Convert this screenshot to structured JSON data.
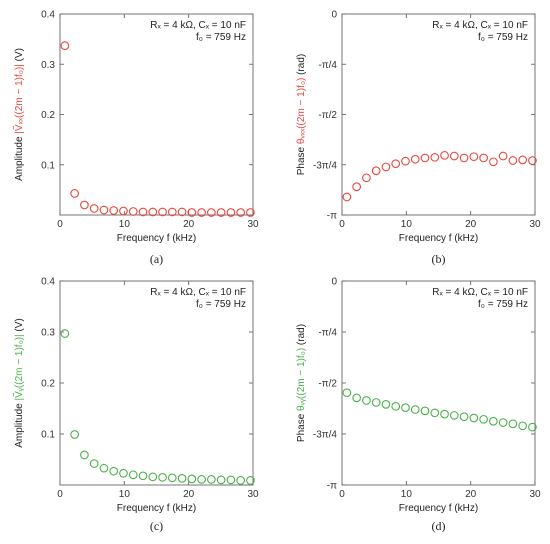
{
  "colors": {
    "red": "#e8473f",
    "green": "#4bb04b"
  },
  "chart_data": [
    {
      "id": "a",
      "type": "scatter",
      "caption": "(a)",
      "ylabel_parts": {
        "left": "Amplitude ",
        "colored": "|Ṽₓₓ((2m − 1)f₀)|",
        "right": " (V)"
      },
      "xlabel": "Frequency f (kHz)",
      "annotation": [
        "Rₓ = 4 kΩ, Cₓ = 10 nF",
        "f₀ = 759 Hz"
      ],
      "xlim": [
        0,
        30
      ],
      "ylim": [
        0,
        0.4
      ],
      "xticks": [
        0,
        10,
        20,
        30
      ],
      "xtick_labels": [
        "0",
        "10",
        "20",
        "30"
      ],
      "yticks": [
        0.1,
        0.2,
        0.3,
        0.4
      ],
      "ytick_labels": [
        "0.1",
        "0.2",
        "0.3",
        "0.4"
      ],
      "color": "red",
      "x": [
        0.759,
        2.277,
        3.795,
        5.313,
        6.831,
        8.349,
        9.867,
        11.385,
        12.903,
        14.421,
        15.939,
        17.457,
        18.975,
        20.493,
        22.011,
        23.529,
        25.047,
        26.565,
        28.083,
        29.601
      ],
      "y": [
        0.337,
        0.043,
        0.02,
        0.013,
        0.01,
        0.009,
        0.008,
        0.007,
        0.006,
        0.006,
        0.006,
        0.006,
        0.006,
        0.005,
        0.005,
        0.005,
        0.005,
        0.005,
        0.005,
        0.005
      ]
    },
    {
      "id": "b",
      "type": "scatter",
      "caption": "(b)",
      "ylabel_parts": {
        "left": "Phase ",
        "colored": "θᵥₓₓ((2m − 1)f₀)",
        "right": " (rad)"
      },
      "xlabel": "Frequency f (kHz)",
      "annotation": [
        "Rₓ = 4 kΩ, Cₓ = 10 nF",
        "f₀ = 759 Hz"
      ],
      "xlim": [
        0,
        30
      ],
      "ylim": [
        -3.1416,
        0
      ],
      "xticks": [
        0,
        10,
        20,
        30
      ],
      "xtick_labels": [
        "0",
        "10",
        "20",
        "30"
      ],
      "yticks": [
        -3.1416,
        -2.3562,
        -1.5708,
        -0.7854,
        0
      ],
      "ytick_labels": [
        "-π",
        "-3π/4",
        "-π/2",
        "-π/4",
        "0"
      ],
      "color": "red",
      "x": [
        0.759,
        2.277,
        3.795,
        5.313,
        6.831,
        8.349,
        9.867,
        11.385,
        12.903,
        14.421,
        15.939,
        17.457,
        18.975,
        20.493,
        22.011,
        23.529,
        25.047,
        26.565,
        28.083,
        29.601
      ],
      "y": [
        -2.86,
        -2.7,
        -2.56,
        -2.45,
        -2.39,
        -2.34,
        -2.3,
        -2.27,
        -2.25,
        -2.24,
        -2.21,
        -2.22,
        -2.25,
        -2.23,
        -2.25,
        -2.31,
        -2.22,
        -2.29,
        -2.28,
        -2.29
      ]
    },
    {
      "id": "c",
      "type": "scatter",
      "caption": "(c)",
      "ylabel_parts": {
        "left": "Amplitude ",
        "colored": "|Ṽᵧ((2m − 1)f₀)|",
        "right": " (V)"
      },
      "xlabel": "Frequency f (kHz)",
      "annotation": [
        "Rₓ = 4 kΩ, Cₓ = 10 nF",
        "f₀ = 759 Hz"
      ],
      "xlim": [
        0,
        30
      ],
      "ylim": [
        0,
        0.4
      ],
      "xticks": [
        0,
        10,
        20,
        30
      ],
      "xtick_labels": [
        "0",
        "10",
        "20",
        "30"
      ],
      "yticks": [
        0.1,
        0.2,
        0.3,
        0.4
      ],
      "ytick_labels": [
        "0.1",
        "0.2",
        "0.3",
        "0.4"
      ],
      "color": "green",
      "x": [
        0.759,
        2.277,
        3.795,
        5.313,
        6.831,
        8.349,
        9.867,
        11.385,
        12.903,
        14.421,
        15.939,
        17.457,
        18.975,
        20.493,
        22.011,
        23.529,
        25.047,
        26.565,
        28.083,
        29.601
      ],
      "y": [
        0.297,
        0.099,
        0.059,
        0.042,
        0.033,
        0.027,
        0.023,
        0.02,
        0.018,
        0.016,
        0.015,
        0.014,
        0.013,
        0.012,
        0.011,
        0.011,
        0.01,
        0.01,
        0.009,
        0.009
      ]
    },
    {
      "id": "d",
      "type": "scatter",
      "caption": "(d)",
      "ylabel_parts": {
        "left": "Phase ",
        "colored": "θᵥᵧ((2m − 1)f₀)",
        "right": " (rad)"
      },
      "xlabel": "Frequency f (kHz)",
      "annotation": [
        "Rₓ = 4 kΩ, Cₓ = 10 nF",
        "f₀ = 759 Hz"
      ],
      "xlim": [
        0,
        30
      ],
      "ylim": [
        -3.1416,
        0
      ],
      "xticks": [
        0,
        10,
        20,
        30
      ],
      "xtick_labels": [
        "0",
        "10",
        "20",
        "30"
      ],
      "yticks": [
        -3.1416,
        -2.3562,
        -1.5708,
        -0.7854,
        0
      ],
      "ytick_labels": [
        "-π",
        "-3π/4",
        "-π/2",
        "-π/4",
        "0"
      ],
      "color": "green",
      "x": [
        0.759,
        2.277,
        3.795,
        5.313,
        6.831,
        8.349,
        9.867,
        11.385,
        12.903,
        14.421,
        15.939,
        17.457,
        18.975,
        20.493,
        22.011,
        23.529,
        25.047,
        26.565,
        28.083,
        29.601
      ],
      "y": [
        -1.72,
        -1.8,
        -1.84,
        -1.87,
        -1.9,
        -1.93,
        -1.95,
        -1.98,
        -2.0,
        -2.03,
        -2.05,
        -2.07,
        -2.09,
        -2.11,
        -2.13,
        -2.16,
        -2.18,
        -2.2,
        -2.23,
        -2.25
      ]
    }
  ]
}
